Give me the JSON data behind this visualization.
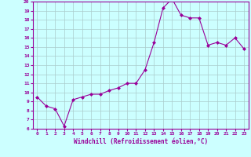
{
  "hours": [
    0,
    1,
    2,
    3,
    4,
    5,
    6,
    7,
    8,
    9,
    10,
    11,
    12,
    13,
    14,
    15,
    16,
    17,
    18,
    19,
    20,
    21,
    22,
    23
  ],
  "values": [
    9.5,
    8.5,
    8.2,
    6.3,
    9.2,
    9.5,
    9.8,
    9.8,
    10.2,
    10.5,
    11.0,
    11.0,
    12.5,
    15.5,
    19.3,
    20.3,
    18.5,
    18.2,
    18.2,
    15.2,
    15.5,
    15.2,
    16.0,
    14.8
  ],
  "line_color": "#990099",
  "marker": "D",
  "marker_size": 2,
  "bg_color": "#ccffff",
  "grid_color": "#aacccc",
  "xlabel": "Windchill (Refroidissement éolien,°C)",
  "xlabel_color": "#990099",
  "tick_color": "#990099",
  "axis_color": "#990099",
  "ylim": [
    6,
    20
  ],
  "xlim": [
    -0.5,
    23.5
  ],
  "yticks": [
    6,
    7,
    8,
    9,
    10,
    11,
    12,
    13,
    14,
    15,
    16,
    17,
    18,
    19,
    20
  ],
  "xticks": [
    0,
    1,
    2,
    3,
    4,
    5,
    6,
    7,
    8,
    9,
    10,
    11,
    12,
    13,
    14,
    15,
    16,
    17,
    18,
    19,
    20,
    21,
    22,
    23
  ]
}
